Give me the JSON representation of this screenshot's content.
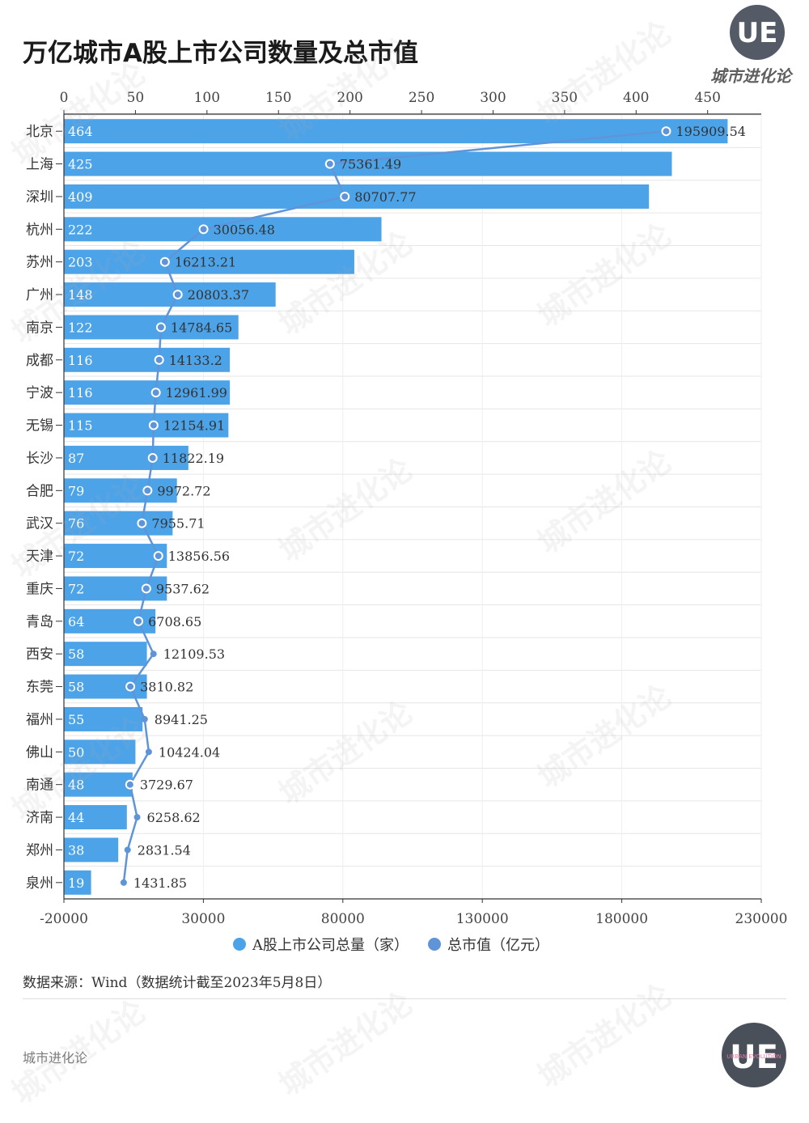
{
  "title": "万亿城市A股上市公司数量及总市值",
  "brand": {
    "logo_text": "UE",
    "name": "城市进化论"
  },
  "legend": {
    "items": [
      {
        "label": "A股上市公司总量（家）",
        "color": "#4da3e8"
      },
      {
        "label": "总市值（亿元）",
        "color": "#5f95d8"
      }
    ]
  },
  "source_note": "数据来源：Wind（数据统计截至2023年5月8日）",
  "footer": {
    "brand": "城市进化论",
    "logo_text": "UE",
    "logo_small": "URBAN EVOLUTION"
  },
  "watermark": {
    "cn": "城市进化论",
    "en": "URBAN EVOLUTION"
  },
  "chart_data": {
    "type": "bar",
    "orientation": "horizontal",
    "categories": [
      "北京",
      "上海",
      "深圳",
      "杭州",
      "苏州",
      "广州",
      "南京",
      "成都",
      "宁波",
      "无锡",
      "长沙",
      "合肥",
      "武汉",
      "天津",
      "重庆",
      "青岛",
      "西安",
      "东莞",
      "福州",
      "佛山",
      "南通",
      "济南",
      "郑州",
      "泉州"
    ],
    "series": [
      {
        "name": "A股上市公司总量（家）",
        "type": "bar",
        "axis": "top",
        "color": "#4da3e8",
        "values": [
          464,
          425,
          409,
          222,
          203,
          148,
          122,
          116,
          116,
          115,
          87,
          79,
          76,
          72,
          72,
          64,
          58,
          58,
          55,
          50,
          48,
          44,
          38,
          19
        ],
        "labels": [
          "464",
          "425",
          "409",
          "222",
          "203",
          "148",
          "122",
          "116",
          "116",
          "115",
          "87",
          "79",
          "76",
          "72",
          "72",
          "64",
          "58",
          "58",
          "55",
          "50",
          "48",
          "44",
          "38",
          "19"
        ]
      },
      {
        "name": "总市值（亿元）",
        "type": "line",
        "axis": "bottom",
        "color": "#5f95d8",
        "values": [
          195909.54,
          75361.49,
          80707.77,
          30056.48,
          16213.21,
          20803.37,
          14784.65,
          14133.2,
          12961.99,
          12154.91,
          11822.19,
          9972.72,
          7955.71,
          13856.56,
          9537.62,
          6708.65,
          12109.53,
          3810.82,
          8941.25,
          10424.04,
          3729.67,
          6258.62,
          2831.54,
          1431.85
        ],
        "labels": [
          "195909.54",
          "75361.49",
          "80707.77",
          "30056.48",
          "16213.21",
          "20803.37",
          "14784.65",
          "14133.2",
          "12961.99",
          "12154.91",
          "11822.19",
          "9972.72",
          "7955.71",
          "13856.56",
          "9537.62",
          "6708.65",
          "12109.53",
          "3810.82",
          "8941.25",
          "10424.04",
          "3729.67",
          "6258.62",
          "2831.54",
          "1431.85"
        ]
      }
    ],
    "top_axis": {
      "range": [
        0,
        487.5
      ],
      "ticks": [
        0,
        50,
        100,
        150,
        200,
        250,
        300,
        350,
        400,
        450
      ],
      "tick_labels": [
        "0",
        "50",
        "100",
        "150",
        "200",
        "250",
        "300",
        "350",
        "400",
        "450"
      ]
    },
    "bottom_axis": {
      "range": [
        -20000,
        230000
      ],
      "ticks": [
        -20000,
        30000,
        80000,
        130000,
        180000,
        230000
      ],
      "tick_labels": [
        "-20000",
        "30000",
        "80000",
        "130000",
        "180000",
        "230000"
      ]
    },
    "grid": true,
    "legend_position": "bottom"
  }
}
